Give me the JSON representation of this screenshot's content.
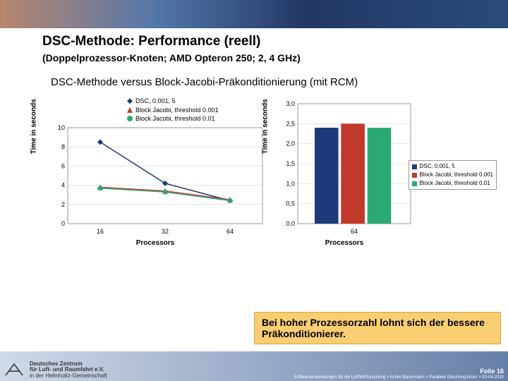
{
  "header": {
    "title": "DSC-Methode: Performance (reell)",
    "subtitle": "(Doppelprozessor-Knoten; AMD Opteron 250; 2, 4 GHz)",
    "comparison": "DSC-Methode versus Block-Jacobi-Präkonditionierung (mit RCM)"
  },
  "line_chart": {
    "type": "line",
    "ylabel": "Time in seconds",
    "xlabel": "Processors",
    "x_categories": [
      "16",
      "32",
      "64"
    ],
    "y_ticks": [
      "0",
      "2",
      "4",
      "6",
      "8",
      "10"
    ],
    "ylim": [
      0,
      10
    ],
    "series": [
      {
        "name": "DSC, 0.001, 5",
        "color": "#1f3a7a",
        "marker": "diamond",
        "values": [
          8.5,
          4.2,
          2.4
        ]
      },
      {
        "name": "Block Jacobi, threshold 0.001",
        "color": "#c0392b",
        "marker": "triangle",
        "values": [
          3.8,
          3.4,
          2.5
        ]
      },
      {
        "name": "Block Jacobi, threshold 0.01",
        "color": "#2aa876",
        "marker": "circle",
        "values": [
          3.7,
          3.3,
          2.4
        ]
      }
    ],
    "background": "#ffffff",
    "grid_color": "#cccccc",
    "label_fontsize": 10
  },
  "bar_chart": {
    "type": "bar",
    "ylabel": "Time in seconds",
    "xlabel": "Processors",
    "x_categories": [
      "64"
    ],
    "y_ticks": [
      "0,0",
      "0,5",
      "1,0",
      "1,5",
      "2,0",
      "2,5",
      "3,0"
    ],
    "ylim": [
      0,
      3.0
    ],
    "series": [
      {
        "name": "DSC, 0.001, 5",
        "color": "#1f3a7a",
        "value": 2.4
      },
      {
        "name": "Block Jacobi, threshold 0.001",
        "color": "#c0392b",
        "value": 2.5
      },
      {
        "name": "Block Jacobi, threshold 0.01",
        "color": "#2aa876",
        "value": 2.4
      }
    ],
    "background": "#ffffff",
    "grid_color": "#cccccc",
    "label_fontsize": 10
  },
  "callout": "Bei hoher Prozessorzahl lohnt sich der bessere Präkonditionierer.",
  "footer": {
    "org": "Deutsches Zentrum\nfür Luft- und Raumfahrt e.V.",
    "tagline": "in der Helmholtz-Gemeinschaft",
    "slide_num": "Folie 16",
    "credit": "Softwareanwendungen für die Luftfahrtforschung > Achim Basermann > Parallele Gleichungslöser > 20-04-2010"
  }
}
